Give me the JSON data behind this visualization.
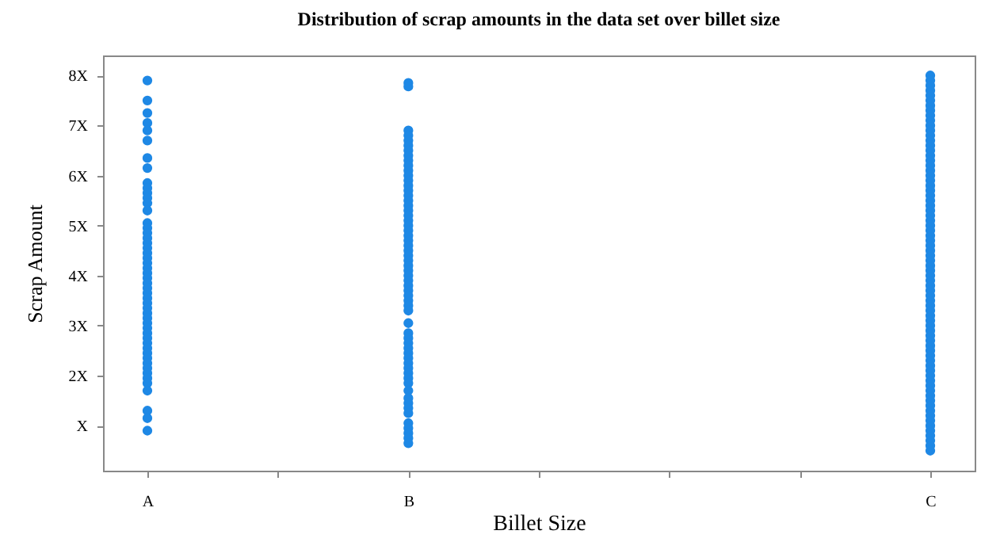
{
  "chart_data": {
    "type": "scatter",
    "title": "Distribution of scrap amounts in the data set over billet size",
    "xlabel": "Billet Size",
    "ylabel": "Scrap Amount",
    "categories": [
      "A",
      null,
      "B",
      null,
      null,
      null,
      "C"
    ],
    "ylim": [
      0.1,
      8.4
    ],
    "yticks": [
      {
        "value": 1,
        "label": "X"
      },
      {
        "value": 2,
        "label": "2X"
      },
      {
        "value": 3,
        "label": "3X"
      },
      {
        "value": 4,
        "label": "4X"
      },
      {
        "value": 5,
        "label": "5X"
      },
      {
        "value": 6,
        "label": "6X"
      },
      {
        "value": 7,
        "label": "7X"
      },
      {
        "value": 8,
        "label": "8X"
      }
    ],
    "grid": false,
    "marker": "circle",
    "series": [
      {
        "color": "#1e88e5",
        "x": [
          "A",
          "A",
          "A",
          "A",
          "A",
          "A",
          "A",
          "A",
          "A",
          "A",
          "A",
          "A",
          "A",
          "A",
          "A",
          "A",
          "A",
          "A",
          "A",
          "A",
          "A",
          "A",
          "A",
          "A",
          "A",
          "A",
          "A",
          "A",
          "A",
          "A",
          "A",
          "A",
          "A",
          "A",
          "A",
          "A",
          "A",
          "A",
          "A",
          "A",
          "A",
          "A",
          "A",
          "A",
          "A",
          "A",
          "A",
          "A",
          "A",
          "A",
          "A"
        ],
        "values": [
          7.9,
          7.5,
          7.25,
          7.05,
          6.9,
          6.7,
          6.35,
          6.15,
          5.85,
          5.75,
          5.65,
          5.55,
          5.45,
          5.3,
          5.05,
          4.95,
          4.85,
          4.75,
          4.65,
          4.55,
          4.45,
          4.35,
          4.25,
          4.15,
          4.05,
          3.95,
          3.85,
          3.75,
          3.65,
          3.55,
          3.45,
          3.35,
          3.25,
          3.15,
          3.05,
          2.95,
          2.85,
          2.75,
          2.65,
          2.55,
          2.45,
          2.35,
          2.25,
          2.15,
          2.05,
          1.95,
          1.85,
          1.7,
          1.3,
          1.15,
          0.9
        ]
      },
      {
        "color": "#1e88e5",
        "x": [
          "B",
          "B",
          "B",
          "B",
          "B",
          "B",
          "B",
          "B",
          "B",
          "B",
          "B",
          "B",
          "B",
          "B",
          "B",
          "B",
          "B",
          "B",
          "B",
          "B",
          "B",
          "B",
          "B",
          "B",
          "B",
          "B",
          "B",
          "B",
          "B",
          "B",
          "B",
          "B",
          "B",
          "B",
          "B",
          "B",
          "B",
          "B",
          "B",
          "B",
          "B",
          "B",
          "B",
          "B",
          "B",
          "B",
          "B",
          "B",
          "B",
          "B",
          "B",
          "B",
          "B",
          "B",
          "B",
          "B",
          "B",
          "B",
          "B",
          "B",
          "B"
        ],
        "values": [
          7.85,
          7.78,
          6.9,
          6.8,
          6.7,
          6.6,
          6.5,
          6.4,
          6.3,
          6.2,
          6.1,
          6.0,
          5.9,
          5.8,
          5.7,
          5.6,
          5.5,
          5.4,
          5.3,
          5.2,
          5.1,
          5.0,
          4.9,
          4.8,
          4.7,
          4.6,
          4.5,
          4.4,
          4.3,
          4.2,
          4.1,
          4.0,
          3.9,
          3.8,
          3.7,
          3.6,
          3.5,
          3.4,
          3.3,
          3.05,
          2.85,
          2.75,
          2.65,
          2.55,
          2.45,
          2.35,
          2.25,
          2.15,
          2.05,
          1.95,
          1.85,
          1.7,
          1.55,
          1.45,
          1.35,
          1.25,
          1.05,
          0.95,
          0.85,
          0.75,
          0.65
        ]
      },
      {
        "color": "#1e88e5",
        "x": [
          "C",
          "C",
          "C",
          "C",
          "C",
          "C",
          "C",
          "C",
          "C",
          "C",
          "C",
          "C",
          "C",
          "C",
          "C",
          "C",
          "C",
          "C",
          "C",
          "C",
          "C",
          "C",
          "C",
          "C",
          "C",
          "C",
          "C",
          "C",
          "C",
          "C",
          "C",
          "C",
          "C",
          "C",
          "C",
          "C",
          "C",
          "C",
          "C",
          "C",
          "C",
          "C",
          "C",
          "C",
          "C",
          "C",
          "C",
          "C",
          "C",
          "C",
          "C",
          "C",
          "C",
          "C",
          "C",
          "C",
          "C",
          "C",
          "C",
          "C",
          "C",
          "C",
          "C",
          "C",
          "C",
          "C",
          "C",
          "C",
          "C",
          "C",
          "C",
          "C",
          "C",
          "C",
          "C",
          "C"
        ],
        "values": [
          8.0,
          7.9,
          7.8,
          7.7,
          7.6,
          7.5,
          7.4,
          7.3,
          7.2,
          7.1,
          7.0,
          6.9,
          6.8,
          6.7,
          6.6,
          6.5,
          6.4,
          6.3,
          6.2,
          6.1,
          6.0,
          5.9,
          5.8,
          5.7,
          5.6,
          5.5,
          5.4,
          5.3,
          5.2,
          5.1,
          5.0,
          4.9,
          4.8,
          4.7,
          4.6,
          4.5,
          4.4,
          4.3,
          4.2,
          4.1,
          4.0,
          3.9,
          3.8,
          3.7,
          3.6,
          3.5,
          3.4,
          3.3,
          3.2,
          3.1,
          3.0,
          2.9,
          2.8,
          2.7,
          2.6,
          2.5,
          2.4,
          2.3,
          2.2,
          2.1,
          2.0,
          1.9,
          1.8,
          1.7,
          1.6,
          1.5,
          1.4,
          1.3,
          1.2,
          1.1,
          1.0,
          0.9,
          0.8,
          0.7,
          0.6,
          0.5
        ]
      }
    ]
  }
}
